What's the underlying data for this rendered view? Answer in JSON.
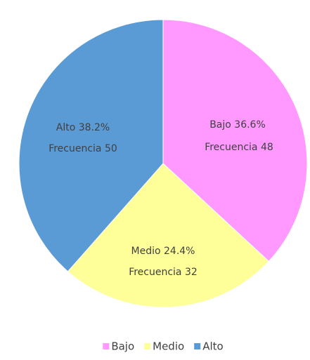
{
  "chart_data": {
    "type": "pie",
    "categories": [
      "Bajo",
      "Medio",
      "Alto"
    ],
    "values": [
      36.6,
      24.4,
      38.2
    ],
    "value_labels": [
      "36.6%",
      "24.4%",
      "38.2%"
    ],
    "frequency_label": "Frecuencia",
    "frequencies": [
      48,
      32,
      50
    ],
    "colors": [
      "#ff99ff",
      "#ffff99",
      "#5b9bd5"
    ],
    "legend": "bottom"
  }
}
